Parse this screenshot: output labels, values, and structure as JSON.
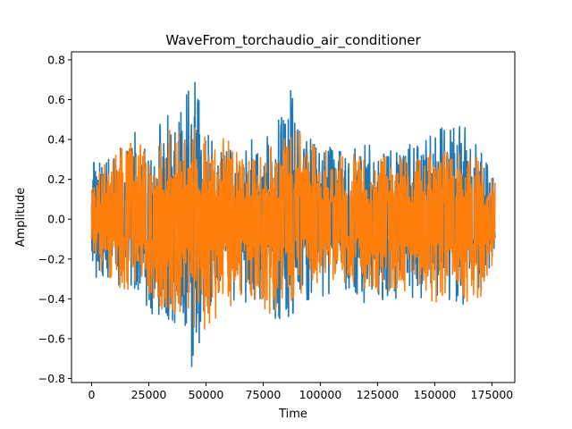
{
  "chart_data": {
    "type": "line",
    "title": "WaveFrom_torchaudio_air_conditioner",
    "xlabel": "Time",
    "ylabel": "Amplitude",
    "xlim": [
      -8800,
      185000
    ],
    "ylim": [
      -0.82,
      0.84
    ],
    "x_ticks": [
      0,
      25000,
      50000,
      75000,
      100000,
      125000,
      150000,
      175000
    ],
    "x_tick_labels": [
      "0",
      "25000",
      "50000",
      "75000",
      "100000",
      "125000",
      "150000",
      "175000"
    ],
    "y_ticks": [
      -0.8,
      -0.6,
      -0.4,
      -0.2,
      0.0,
      0.2,
      0.4,
      0.6,
      0.8
    ],
    "y_tick_labels": [
      "−0.8",
      "−0.6",
      "−0.4",
      "−0.2",
      "0.0",
      "0.2",
      "0.4",
      "0.6",
      "0.8"
    ],
    "grid": false,
    "legend": "none",
    "sample_count": 176400,
    "series": [
      {
        "color": "#1f77b4",
        "envelope_x": [
          0,
          10000,
          20000,
          30000,
          40000,
          44000,
          50000,
          60000,
          70000,
          80000,
          87000,
          90000,
          100000,
          110000,
          120000,
          130000,
          140000,
          150000,
          160000,
          170000,
          176400
        ],
        "envelope_max": [
          0.3,
          0.35,
          0.45,
          0.52,
          0.55,
          0.75,
          0.45,
          0.35,
          0.4,
          0.45,
          0.67,
          0.45,
          0.4,
          0.35,
          0.4,
          0.35,
          0.4,
          0.45,
          0.5,
          0.4,
          0.2
        ],
        "envelope_min": [
          -0.3,
          -0.35,
          -0.45,
          -0.5,
          -0.6,
          -0.77,
          -0.5,
          -0.4,
          -0.45,
          -0.5,
          -0.5,
          -0.45,
          -0.4,
          -0.35,
          -0.45,
          -0.4,
          -0.4,
          -0.45,
          -0.45,
          -0.4,
          -0.2
        ]
      },
      {
        "color": "#ff7f0e",
        "envelope_x": [
          0,
          10000,
          20000,
          30000,
          40000,
          50000,
          60000,
          70000,
          80000,
          90000,
          100000,
          110000,
          120000,
          130000,
          140000,
          150000,
          160000,
          170000,
          176400
        ],
        "envelope_max": [
          0.2,
          0.35,
          0.4,
          0.42,
          0.5,
          0.45,
          0.4,
          0.35,
          0.4,
          0.45,
          0.35,
          0.35,
          0.3,
          0.35,
          0.3,
          0.35,
          0.35,
          0.3,
          0.2
        ],
        "envelope_min": [
          -0.2,
          -0.35,
          -0.4,
          -0.45,
          -0.55,
          -0.6,
          -0.45,
          -0.4,
          -0.5,
          -0.4,
          -0.35,
          -0.35,
          -0.35,
          -0.4,
          -0.35,
          -0.45,
          -0.45,
          -0.4,
          -0.2
        ]
      }
    ]
  }
}
